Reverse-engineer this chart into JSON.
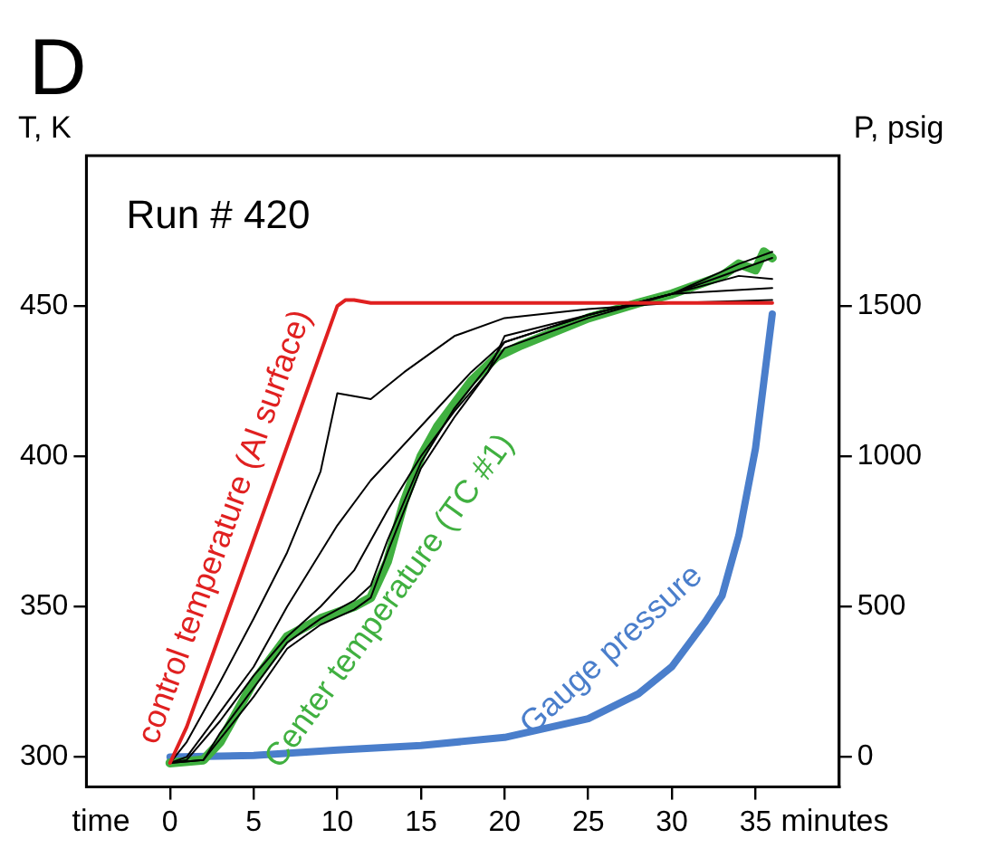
{
  "chart_data": {
    "type": "line",
    "title": "D",
    "xlabel": "minutes",
    "ylabel": "T, K",
    "y2label": "P, psig",
    "annotations": [
      "Run # 420",
      "time"
    ],
    "xlim": [
      -5,
      40
    ],
    "xticks": [
      0,
      5,
      10,
      15,
      20,
      25,
      30,
      35
    ],
    "ylim": [
      290,
      500
    ],
    "yticks": [
      300,
      350,
      400,
      450
    ],
    "y2lim": [
      -100,
      2000
    ],
    "y2ticks": [
      0,
      500,
      1000,
      1500
    ],
    "grid": false,
    "legend": false,
    "marker": "none",
    "line_style": "solid",
    "series": [
      {
        "name": "control temperature (Al surface)",
        "color": "#e02020",
        "x": [
          0,
          1,
          10,
          10.5,
          11,
          12,
          20,
          30,
          36
        ],
        "values": [
          298,
          310,
          450,
          452,
          452,
          451,
          451,
          451,
          451
        ]
      },
      {
        "color": "#000000",
        "x": [
          0,
          1,
          3,
          5,
          7,
          9,
          10,
          11,
          12,
          14,
          17,
          20,
          25,
          30,
          36
        ],
        "values": [
          298,
          305,
          325,
          346,
          368,
          395,
          421,
          420,
          419,
          428,
          440,
          446,
          449,
          451,
          452
        ]
      },
      {
        "color": "#000000",
        "x": [
          0,
          1,
          3,
          5,
          7,
          10,
          12,
          15,
          18,
          20,
          25,
          30,
          36
        ],
        "values": [
          298,
          300,
          315,
          330,
          350,
          377,
          392,
          410,
          428,
          438,
          447,
          454,
          456
        ]
      },
      {
        "color": "#000000",
        "x": [
          0,
          1,
          3,
          5,
          7,
          9,
          11,
          13,
          15,
          17,
          19,
          20,
          25,
          30,
          34,
          36
        ],
        "values": [
          298,
          299,
          312,
          327,
          340,
          350,
          362,
          382,
          400,
          415,
          428,
          440,
          447,
          454,
          460,
          459
        ]
      },
      {
        "color": "#000000",
        "x": [
          0,
          2,
          3,
          5,
          7,
          9,
          11,
          12,
          13,
          15,
          17,
          19,
          20,
          25,
          30,
          34,
          36
        ],
        "values": [
          298,
          299,
          308,
          323,
          338,
          346,
          352,
          357,
          372,
          398,
          416,
          430,
          438,
          447,
          454,
          464,
          468
        ]
      },
      {
        "color": "#000000",
        "x": [
          0,
          2,
          3,
          5,
          7,
          9,
          11,
          12,
          13,
          15,
          17,
          19,
          20,
          25,
          30,
          34,
          36
        ],
        "values": [
          298,
          299,
          306,
          320,
          336,
          344,
          349,
          353,
          368,
          396,
          413,
          428,
          436,
          446,
          454,
          462,
          466
        ]
      },
      {
        "name": "Center temperature (TC #1)",
        "color": "#40b040",
        "x": [
          0,
          2,
          3,
          5,
          7,
          9,
          11,
          12,
          13,
          14,
          15,
          16,
          18,
          19.5,
          21,
          25,
          28,
          30,
          33,
          34,
          35,
          35.5,
          36
        ],
        "values": [
          298,
          299,
          305,
          325,
          340,
          346,
          350,
          353,
          365,
          385,
          400,
          410,
          425,
          433,
          437,
          446,
          451,
          454,
          460,
          464,
          462,
          468,
          466
        ]
      },
      {
        "name": "Gauge pressure",
        "color": "#4a7ecb",
        "axis": "y2",
        "x": [
          0,
          5,
          10,
          15,
          20,
          25,
          28,
          30,
          32,
          33,
          34,
          35,
          35.5,
          36
        ],
        "values": [
          0,
          5,
          23,
          38,
          65,
          127,
          210,
          300,
          450,
          536,
          736,
          1027,
          1250,
          1473
        ]
      }
    ]
  }
}
